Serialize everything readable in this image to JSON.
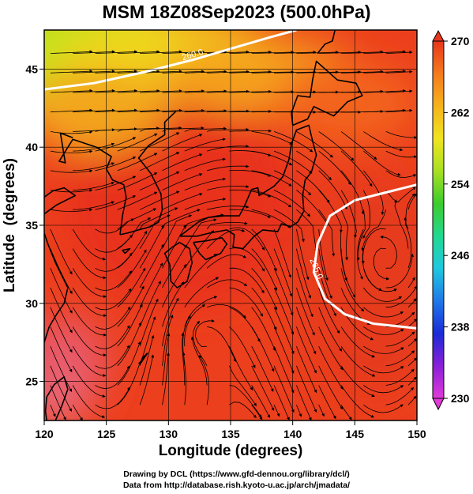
{
  "title": "MSM 18Z08Sep2023 (500.0hPa)",
  "chart_data": {
    "type": "heatmap",
    "title": "MSM 18Z08Sep2023 (500.0hPa)",
    "xlabel": "Longitude (degrees)",
    "ylabel": "Latitude  (degrees)",
    "xlim": [
      120,
      150
    ],
    "ylim": [
      22.5,
      47.5
    ],
    "x_ticks": [
      "120",
      "125",
      "130",
      "135",
      "140",
      "145",
      "150"
    ],
    "y_ticks": [
      "25",
      "30",
      "35",
      "40",
      "45"
    ],
    "colorbar": {
      "min": 230,
      "max": 270,
      "tick_labels": [
        "270",
        "262",
        "254",
        "246",
        "238",
        "230"
      ],
      "palette_low_to_high": [
        "#e03ad8",
        "#8a1fd8",
        "#1a2bd8",
        "#1f78e8",
        "#1fc8e0",
        "#22d890",
        "#3ccc2c",
        "#a8e022",
        "#f0e41f",
        "#f6b21c",
        "#f47a1c",
        "#e8361c"
      ]
    },
    "contours": [
      {
        "label": "260.0",
        "points": [
          [
            120,
            43.7
          ],
          [
            124,
            44.1
          ],
          [
            128,
            44.8
          ],
          [
            132,
            45.6
          ],
          [
            135,
            46.3
          ],
          [
            138,
            47.0
          ],
          [
            140.3,
            47.5
          ]
        ]
      },
      {
        "label": "265.0",
        "points": [
          [
            150,
            37.6
          ],
          [
            148,
            37.2
          ],
          [
            145,
            36.6
          ],
          [
            143,
            35.6
          ],
          [
            142,
            33.8
          ],
          [
            141.7,
            32.0
          ],
          [
            142.6,
            30.3
          ],
          [
            144.2,
            29.3
          ],
          [
            146.5,
            28.7
          ],
          [
            150,
            28.4
          ]
        ]
      }
    ],
    "cyclone_center": {
      "lon": 147.5,
      "lat": 32.7
    },
    "wind_field": "streamlines with arrowheads"
  },
  "credits": {
    "line1": "Drawing by DCL (https://www.gfd-dennou.org/library/dcl/)",
    "line2": "Data from http://database.rish.kyoto-u.ac.jp/arch/jmadata/"
  }
}
